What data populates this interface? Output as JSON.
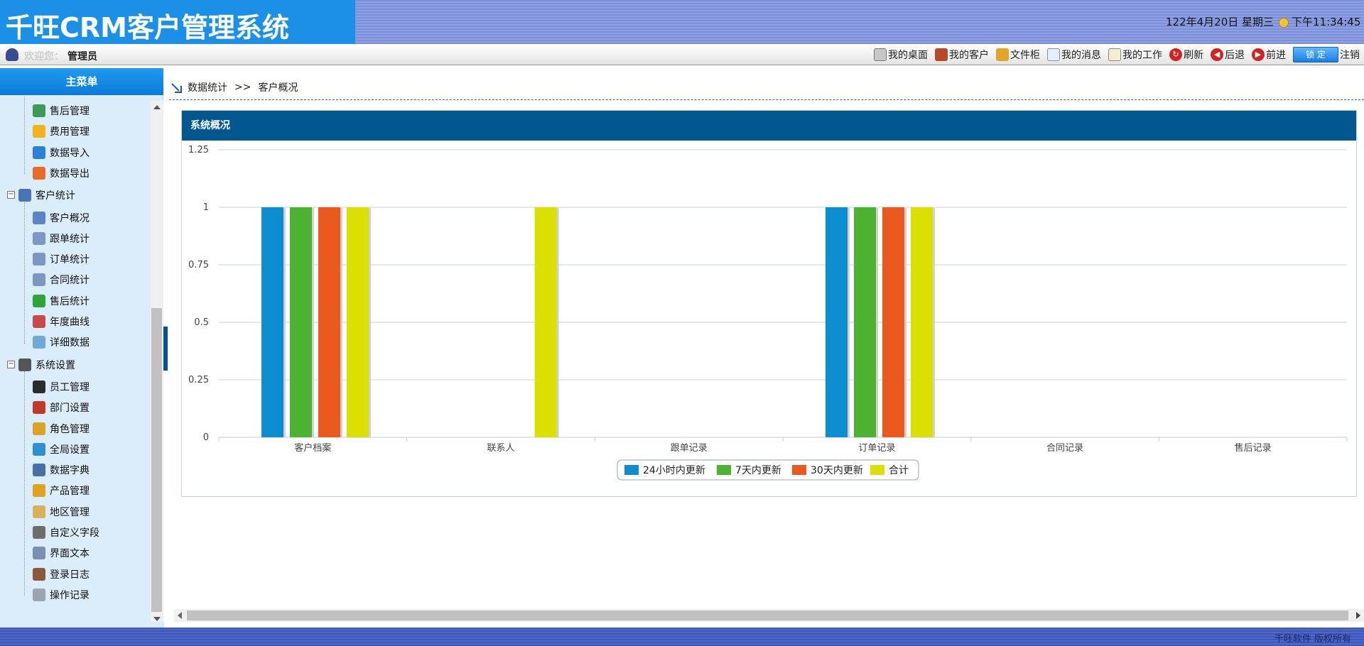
{
  "header": {
    "logo": "千旺CRM客户管理系统",
    "date": "122年4月20日 星期三",
    "time": "下午11:34:45"
  },
  "toolbar": {
    "welcome": "欢迎您：",
    "username": "管理员",
    "items": [
      {
        "label": "我的桌面",
        "icon": "desktop-icon"
      },
      {
        "label": "我的客户",
        "icon": "customer-icon"
      },
      {
        "label": "文件柜",
        "icon": "file-cabinet-icon"
      },
      {
        "label": "我的消息",
        "icon": "message-icon"
      },
      {
        "label": "我的工作",
        "icon": "work-icon"
      },
      {
        "label": "刷新",
        "icon": "refresh-icon"
      },
      {
        "label": "后退",
        "icon": "back-icon"
      },
      {
        "label": "前进",
        "icon": "forward-icon"
      }
    ],
    "lock_label": "锁 定",
    "logout_label": "注销"
  },
  "sidebar": {
    "title": "主菜单",
    "groups": [
      {
        "label": "",
        "items": [
          {
            "label": "售后管理",
            "icon": "after-sales-icon"
          },
          {
            "label": "费用管理",
            "icon": "star-icon"
          },
          {
            "label": "数据导入",
            "icon": "import-icon"
          },
          {
            "label": "数据导出",
            "icon": "export-icon"
          }
        ]
      },
      {
        "label": "客户统计",
        "items": [
          {
            "label": "客户概况",
            "icon": "overview-icon"
          },
          {
            "label": "跟单统计",
            "icon": "bar-chart-icon"
          },
          {
            "label": "订单统计",
            "icon": "bar-chart-icon"
          },
          {
            "label": "合同统计",
            "icon": "bar-chart-icon"
          },
          {
            "label": "售后统计",
            "icon": "green-chart-icon"
          },
          {
            "label": "年度曲线",
            "icon": "line-chart-icon"
          },
          {
            "label": "详细数据",
            "icon": "table-icon"
          }
        ]
      },
      {
        "label": "系统设置",
        "items": [
          {
            "label": "员工管理",
            "icon": "employee-icon"
          },
          {
            "label": "部门设置",
            "icon": "org-chart-icon"
          },
          {
            "label": "角色管理",
            "icon": "key-icon"
          },
          {
            "label": "全局设置",
            "icon": "globe-icon"
          },
          {
            "label": "数据字典",
            "icon": "book-icon"
          },
          {
            "label": "产品管理",
            "icon": "product-icon"
          },
          {
            "label": "地区管理",
            "icon": "map-icon"
          },
          {
            "label": "自定义字段",
            "icon": "edit-icon"
          },
          {
            "label": "界面文本",
            "icon": "text-icon"
          },
          {
            "label": "登录日志",
            "icon": "log-icon"
          },
          {
            "label": "操作记录",
            "icon": "record-icon"
          }
        ]
      }
    ]
  },
  "breadcrumb": {
    "section": "数据统计",
    "separator": ">>",
    "page": "客户概况"
  },
  "panel": {
    "title": "系统概况"
  },
  "chart_data": {
    "type": "bar",
    "categories": [
      "客户档案",
      "联系人",
      "跟单记录",
      "订单记录",
      "合同记录",
      "售后记录"
    ],
    "series": [
      {
        "name": "24小时内更新",
        "color": "#0b8dd0",
        "values": [
          1,
          0,
          0,
          1,
          0,
          0
        ]
      },
      {
        "name": "7天内更新",
        "color": "#4db232",
        "values": [
          1,
          0,
          0,
          1,
          0,
          0
        ]
      },
      {
        "name": "30天内更新",
        "color": "#ea5a1f",
        "values": [
          1,
          0,
          0,
          1,
          0,
          0
        ]
      },
      {
        "name": "合计",
        "color": "#dce000",
        "values": [
          1,
          1,
          0,
          1,
          0,
          0
        ]
      }
    ],
    "y_ticks": [
      "0",
      "0.25",
      "0.5",
      "0.75",
      "1",
      "1.25"
    ],
    "ylim": [
      0,
      1.25
    ],
    "grid": true,
    "legend_position": "bottom-center"
  },
  "footer": {
    "copyright": "千旺软件 版权所有"
  }
}
